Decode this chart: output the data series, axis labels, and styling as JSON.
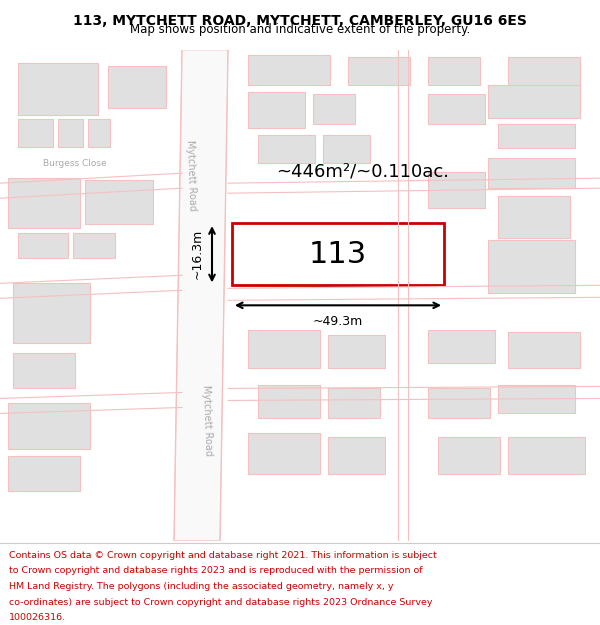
{
  "title": "113, MYTCHETT ROAD, MYTCHETT, CAMBERLEY, GU16 6ES",
  "subtitle": "Map shows position and indicative extent of the property.",
  "footer_lines": [
    "Contains OS data © Crown copyright and database right 2021. This information is subject",
    "to Crown copyright and database rights 2023 and is reproduced with the permission of",
    "HM Land Registry. The polygons (including the associated geometry, namely x, y",
    "co-ordinates) are subject to Crown copyright and database rights 2023 Ordnance Survey",
    "100026316."
  ],
  "bg_color": "#ffffff",
  "road_color": "#f5c0c0",
  "road_fill": "#f9f9f9",
  "building_fill": "#e0e0e0",
  "building_edge": "#f5c0c0",
  "highlight_edge": "#cc0000",
  "highlight_fill": "#ffffff",
  "area_text": "~446m²/~0.110ac.",
  "label_113": "113",
  "dim_width": "~49.3m",
  "dim_height": "~16.3m",
  "road_label1": "Mytchett Road",
  "road_label2": "Mytchett Road",
  "street_label": "Burgess Close",
  "footer_color": "#cc0000"
}
